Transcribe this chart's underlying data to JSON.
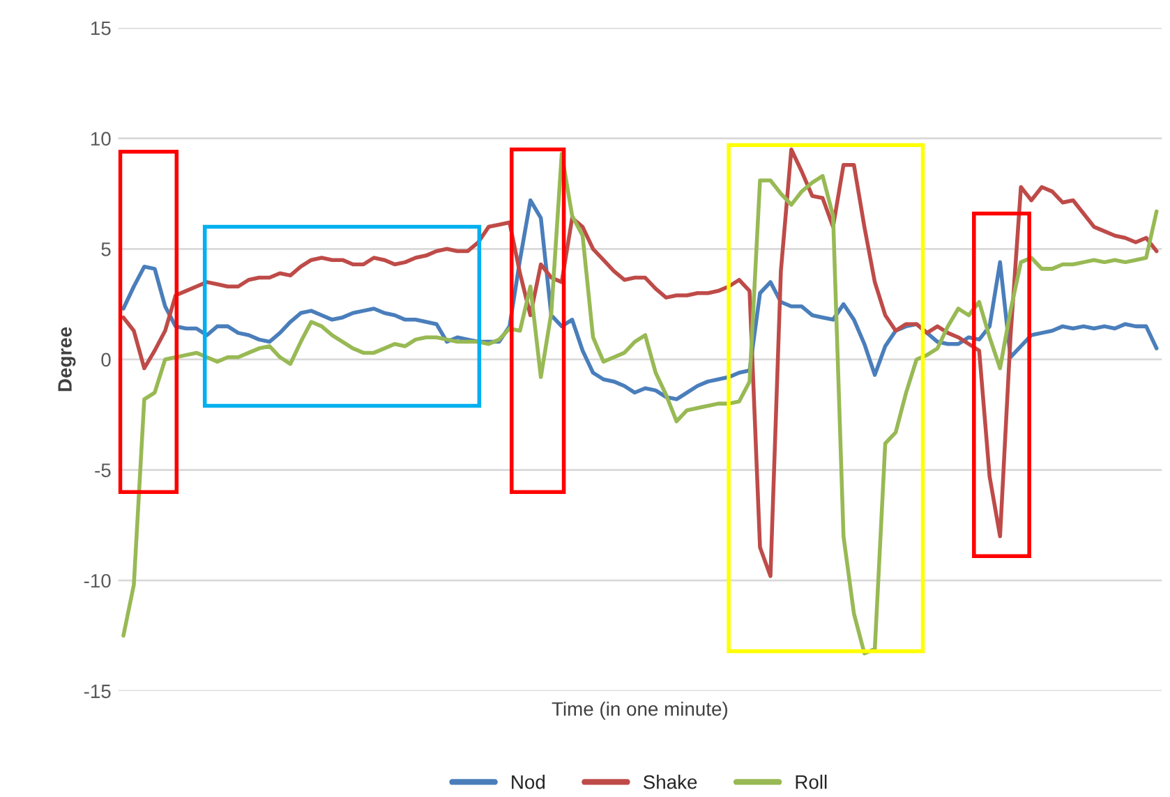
{
  "chart_data": {
    "type": "line",
    "xlabel": "Time (in one minute)",
    "ylabel": "Degree",
    "categories": [
      null,
      null,
      null,
      null,
      null,
      null,
      null,
      null,
      null,
      null,
      null,
      null,
      null,
      null,
      null,
      null,
      null,
      null,
      null,
      null,
      null,
      null,
      null,
      null,
      null,
      null,
      null,
      null,
      null,
      null,
      null,
      null,
      null,
      null,
      null,
      null,
      null,
      null,
      null,
      null,
      null,
      null,
      null,
      null,
      null,
      null,
      null,
      null,
      null,
      null,
      null,
      null,
      null,
      null,
      null,
      null,
      null,
      null,
      null,
      null,
      null,
      null,
      null,
      null,
      null,
      null,
      null,
      null,
      null,
      null,
      null,
      null,
      null,
      null,
      null,
      null,
      null,
      null,
      null,
      null,
      null,
      null,
      null,
      null,
      null,
      null,
      null,
      null,
      null,
      null,
      null,
      null,
      null,
      null,
      null,
      null,
      null,
      null,
      null,
      null
    ],
    "series": [
      {
        "name": "Nod",
        "color": "#4a7ebb",
        "values": [
          2.3,
          3.3,
          4.2,
          4.1,
          2.4,
          1.5,
          1.4,
          1.4,
          1.1,
          1.5,
          1.5,
          1.2,
          1.1,
          0.9,
          0.8,
          1.2,
          1.7,
          2.1,
          2.2,
          2.0,
          1.8,
          1.9,
          2.1,
          2.2,
          2.3,
          2.1,
          2.0,
          1.8,
          1.8,
          1.7,
          1.6,
          0.8,
          1.0,
          0.9,
          0.8,
          0.8,
          0.8,
          1.5,
          4.5,
          7.2,
          6.4,
          2.0,
          1.5,
          1.8,
          0.4,
          -0.6,
          -0.9,
          -1.0,
          -1.2,
          -1.5,
          -1.3,
          -1.4,
          -1.7,
          -1.8,
          -1.5,
          -1.2,
          -1.0,
          -0.9,
          -0.8,
          -0.6,
          -0.5,
          3.0,
          3.5,
          2.6,
          2.4,
          2.4,
          2.0,
          1.9,
          1.8,
          2.5,
          1.8,
          0.7,
          -0.7,
          0.6,
          1.3,
          1.5,
          1.6,
          1.2,
          0.8,
          0.7,
          0.7,
          1.0,
          0.9,
          1.5,
          4.4,
          0.1,
          0.6,
          1.1,
          1.2,
          1.3,
          1.5,
          1.4,
          1.5,
          1.4,
          1.5,
          1.4,
          1.6,
          1.5,
          1.5,
          0.5
        ]
      },
      {
        "name": "Shake",
        "color": "#be4b48",
        "values": [
          1.9,
          1.3,
          -0.4,
          0.4,
          1.3,
          2.9,
          3.1,
          3.3,
          3.5,
          3.4,
          3.3,
          3.3,
          3.6,
          3.7,
          3.7,
          3.9,
          3.8,
          4.2,
          4.5,
          4.6,
          4.5,
          4.5,
          4.3,
          4.3,
          4.6,
          4.5,
          4.3,
          4.4,
          4.6,
          4.7,
          4.9,
          5.0,
          4.9,
          4.9,
          5.3,
          6.0,
          6.1,
          6.2,
          3.9,
          2.0,
          4.3,
          3.7,
          3.5,
          6.4,
          6.0,
          5.0,
          4.5,
          4.0,
          3.6,
          3.7,
          3.7,
          3.2,
          2.8,
          2.9,
          2.9,
          3.0,
          3.0,
          3.1,
          3.3,
          3.6,
          3.1,
          -8.5,
          -9.8,
          4.0,
          9.5,
          8.5,
          7.4,
          7.3,
          6.0,
          8.8,
          8.8,
          6.0,
          3.5,
          2.0,
          1.3,
          1.6,
          1.6,
          1.2,
          1.5,
          1.2,
          1.0,
          0.7,
          0.4,
          -5.3,
          -8.0,
          1.0,
          7.8,
          7.2,
          7.8,
          7.6,
          7.1,
          7.2,
          6.6,
          6.0,
          5.8,
          5.6,
          5.5,
          5.3,
          5.5,
          4.9
        ]
      },
      {
        "name": "Roll",
        "color": "#98b954",
        "values": [
          -12.5,
          -10.2,
          -1.8,
          -1.5,
          0.0,
          0.1,
          0.2,
          0.3,
          0.1,
          -0.1,
          0.1,
          0.1,
          0.3,
          0.5,
          0.6,
          0.1,
          -0.2,
          0.8,
          1.7,
          1.5,
          1.1,
          0.8,
          0.5,
          0.3,
          0.3,
          0.5,
          0.7,
          0.6,
          0.9,
          1.0,
          1.0,
          0.9,
          0.8,
          0.8,
          0.8,
          0.7,
          0.9,
          1.4,
          1.3,
          3.3,
          -0.8,
          2.1,
          9.3,
          6.5,
          5.6,
          1.0,
          -0.1,
          0.1,
          0.3,
          0.8,
          1.1,
          -0.6,
          -1.6,
          -2.8,
          -2.3,
          -2.2,
          -2.1,
          -2.0,
          -2.0,
          -1.9,
          -1.0,
          8.1,
          8.1,
          7.5,
          7.0,
          7.6,
          8.0,
          8.3,
          6.5,
          -8.0,
          -11.5,
          -13.3,
          -13.1,
          -3.8,
          -3.3,
          -1.5,
          0.0,
          0.2,
          0.5,
          1.5,
          2.3,
          2.0,
          2.6,
          1.0,
          -0.4,
          2.2,
          4.4,
          4.6,
          4.1,
          4.1,
          4.3,
          4.3,
          4.4,
          4.5,
          4.4,
          4.5,
          4.4,
          4.5,
          4.6,
          6.7
        ]
      }
    ],
    "ylim": [
      -15,
      15
    ],
    "yticks": [
      -15,
      -10,
      -5,
      0,
      5,
      10,
      15
    ],
    "grid": "y",
    "legend": "bottom",
    "marker": "none",
    "line_style": "solid"
  }
}
